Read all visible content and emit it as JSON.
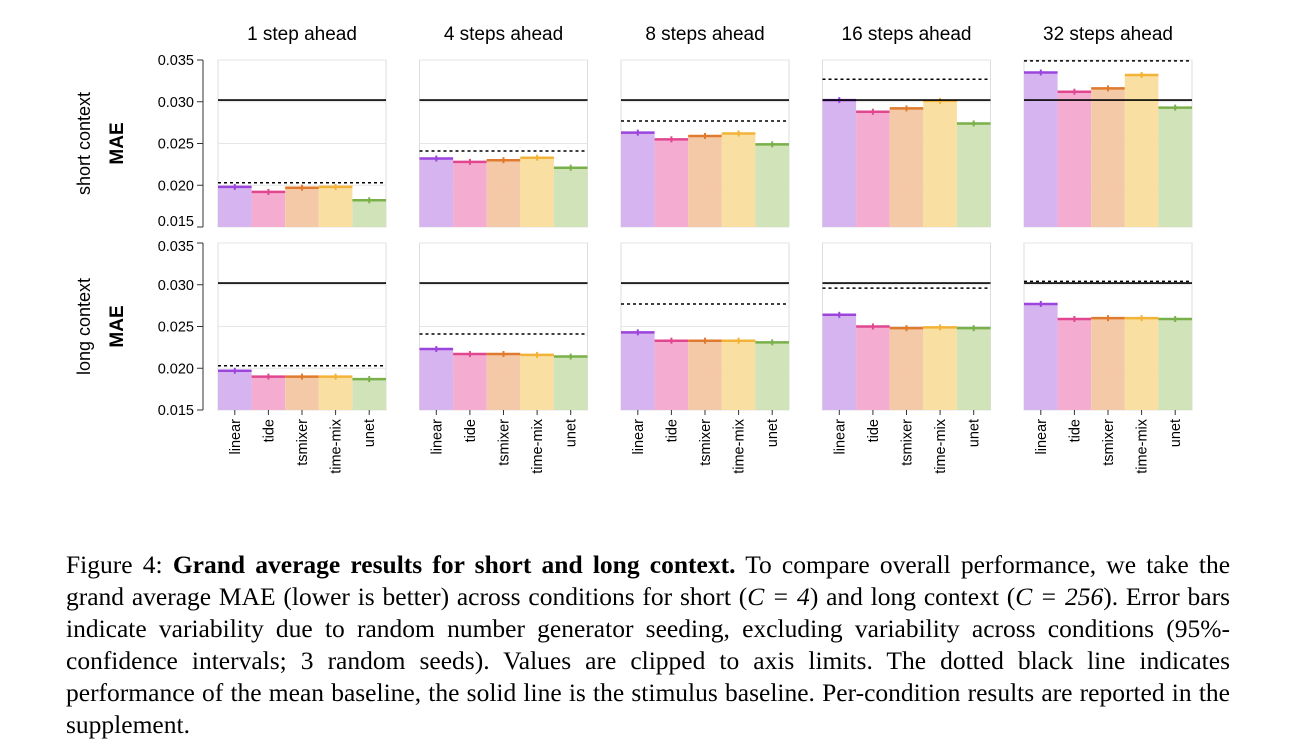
{
  "chart_data": {
    "type": "bar",
    "columns": [
      "1 step ahead",
      "4 steps ahead",
      "8 steps ahead",
      "16 steps ahead",
      "32 steps ahead"
    ],
    "rows": [
      {
        "title": "short context",
        "ylabel": "MAE"
      },
      {
        "title": "long context",
        "ylabel": "MAE"
      }
    ],
    "categories": [
      "linear",
      "tide",
      "tsmixer",
      "time-mix",
      "unet"
    ],
    "colors": {
      "fill": [
        "#d4b0ef",
        "#f3a8cf",
        "#f3c6a2",
        "#f9dd9c",
        "#cfe2b5"
      ],
      "edge": [
        "#9b45dd",
        "#e0478f",
        "#e07a2e",
        "#f2b338",
        "#7ab04a"
      ]
    },
    "ylim": [
      0.015,
      0.035
    ],
    "yticks": [
      "0.015",
      "0.020",
      "0.025",
      "0.030",
      "0.035"
    ],
    "grid": true,
    "panels": [
      [
        {
          "values": [
            0.0198,
            0.0192,
            0.0197,
            0.0198,
            0.0182
          ],
          "mean_baseline": 0.0203,
          "stimulus_baseline": 0.0302
        },
        {
          "values": [
            0.0232,
            0.0228,
            0.023,
            0.0233,
            0.0221
          ],
          "mean_baseline": 0.0241,
          "stimulus_baseline": 0.0302
        },
        {
          "values": [
            0.0263,
            0.0255,
            0.0259,
            0.0262,
            0.0249
          ],
          "mean_baseline": 0.0277,
          "stimulus_baseline": 0.0302
        },
        {
          "values": [
            0.0302,
            0.0288,
            0.0292,
            0.0301,
            0.0274
          ],
          "mean_baseline": 0.0327,
          "stimulus_baseline": 0.0302
        },
        {
          "values": [
            0.0335,
            0.0312,
            0.0316,
            0.0332,
            0.0293
          ],
          "mean_baseline": 0.0349,
          "stimulus_baseline": 0.0302
        }
      ],
      [
        {
          "values": [
            0.0197,
            0.019,
            0.019,
            0.019,
            0.0187
          ],
          "mean_baseline": 0.0203,
          "stimulus_baseline": 0.0302
        },
        {
          "values": [
            0.0223,
            0.0217,
            0.0217,
            0.0216,
            0.0214
          ],
          "mean_baseline": 0.0241,
          "stimulus_baseline": 0.0302
        },
        {
          "values": [
            0.0243,
            0.0233,
            0.0233,
            0.0233,
            0.0231
          ],
          "mean_baseline": 0.0277,
          "stimulus_baseline": 0.0302
        },
        {
          "values": [
            0.0264,
            0.025,
            0.0248,
            0.0249,
            0.0248
          ],
          "mean_baseline": 0.0296,
          "stimulus_baseline": 0.0302
        },
        {
          "values": [
            0.0277,
            0.0259,
            0.026,
            0.026,
            0.0259
          ],
          "mean_baseline": 0.0304,
          "stimulus_baseline": 0.0302
        }
      ]
    ]
  },
  "caption": {
    "label": "Figure 4:",
    "bold": "Grand average results for short and long context.",
    "part1": " To compare overall performance, we take the grand average MAE (lower is better) across conditions for short (",
    "math1": "C = 4",
    "part2": ") and long context (",
    "math2": "C = 256",
    "part3": "). Error bars indicate variability due to random number generator seeding, excluding variability across conditions (95%-confidence intervals; 3 random seeds). Values are clipped to axis limits. The dotted black line indicates performance of the mean baseline, the solid line is the stimulus baseline. Per-condition results are reported in the supplement."
  }
}
